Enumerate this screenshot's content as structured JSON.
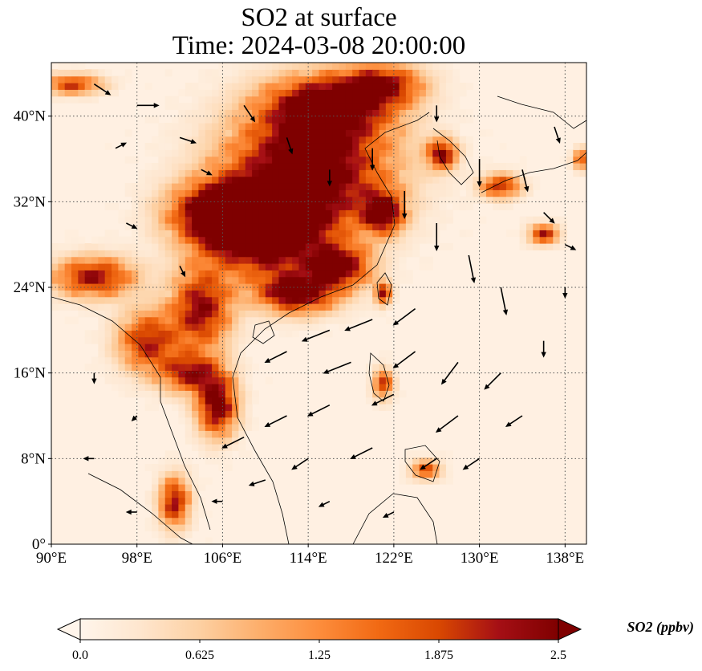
{
  "title": {
    "line1": "SO2 at surface",
    "line2": "Time: 2024-03-08 20:00:00"
  },
  "map": {
    "projection": "PlateCarree",
    "lon_range": [
      90,
      140
    ],
    "lat_range": [
      0,
      45
    ],
    "gridlines": "dotted",
    "lon_ticks": [
      {
        "value": 90,
        "label": "90°E"
      },
      {
        "value": 98,
        "label": "98°E"
      },
      {
        "value": 106,
        "label": "106°E"
      },
      {
        "value": 114,
        "label": "114°E"
      },
      {
        "value": 122,
        "label": "122°E"
      },
      {
        "value": 130,
        "label": "130°E"
      },
      {
        "value": 138,
        "label": "138°E"
      }
    ],
    "lat_ticks": [
      {
        "value": 0,
        "label": "0°"
      },
      {
        "value": 8,
        "label": "8°N"
      },
      {
        "value": 16,
        "label": "16°N"
      },
      {
        "value": 24,
        "label": "24°N"
      },
      {
        "value": 32,
        "label": "32°N"
      },
      {
        "value": 40,
        "label": "40°N"
      }
    ],
    "field": {
      "variable": "SO2",
      "units": "ppbv",
      "background_value": 0.1,
      "hotspots": [
        {
          "lon": 114,
          "lat": 35,
          "rlon": 8,
          "rlat": 6,
          "value": 3.0
        },
        {
          "lon": 110,
          "lat": 29,
          "rlon": 6,
          "rlat": 4,
          "value": 3.0
        },
        {
          "lon": 106,
          "lat": 31,
          "rlon": 5,
          "rlat": 3,
          "value": 2.8
        },
        {
          "lon": 116,
          "lat": 41,
          "rlon": 6,
          "rlat": 3,
          "value": 2.6
        },
        {
          "lon": 121,
          "lat": 31,
          "rlon": 2,
          "rlat": 2,
          "value": 2.5
        },
        {
          "lon": 117,
          "lat": 26,
          "rlon": 3,
          "rlat": 2,
          "value": 2.4
        },
        {
          "lon": 113,
          "lat": 23.5,
          "rlon": 4,
          "rlat": 2,
          "value": 2.6
        },
        {
          "lon": 104,
          "lat": 22,
          "rlon": 3,
          "rlat": 4,
          "value": 2.3
        },
        {
          "lon": 99,
          "lat": 19,
          "rlon": 3,
          "rlat": 3,
          "value": 2.0
        },
        {
          "lon": 94,
          "lat": 25,
          "rlon": 4,
          "rlat": 2,
          "value": 2.2
        },
        {
          "lon": 105.5,
          "lat": 13,
          "rlon": 2,
          "rlat": 3,
          "value": 2.6
        },
        {
          "lon": 103,
          "lat": 16,
          "rlon": 3,
          "rlat": 2,
          "value": 2.0
        },
        {
          "lon": 101.5,
          "lat": 4,
          "rlon": 1.5,
          "rlat": 2.5,
          "value": 2.2
        },
        {
          "lon": 126.5,
          "lat": 36.5,
          "rlon": 1.5,
          "rlat": 1.5,
          "value": 2.3
        },
        {
          "lon": 132,
          "lat": 33.5,
          "rlon": 2,
          "rlat": 1.2,
          "value": 2.0
        },
        {
          "lon": 136,
          "lat": 29,
          "rlon": 1.5,
          "rlat": 1,
          "value": 2.0
        },
        {
          "lon": 121,
          "lat": 23.5,
          "rlon": 0.8,
          "rlat": 1.2,
          "value": 2.0
        },
        {
          "lon": 121,
          "lat": 15,
          "rlon": 1,
          "rlat": 1.5,
          "value": 1.8
        },
        {
          "lon": 125,
          "lat": 7,
          "rlon": 1.5,
          "rlat": 1,
          "value": 1.6
        },
        {
          "lon": 92,
          "lat": 43,
          "rlon": 3,
          "rlat": 1,
          "value": 1.8
        },
        {
          "lon": 121,
          "lat": 43,
          "rlon": 4,
          "rlat": 2,
          "value": 2.0
        },
        {
          "lon": 139.5,
          "lat": 36,
          "rlon": 0.8,
          "rlat": 1,
          "value": 1.8
        }
      ]
    },
    "wind_vectors": [
      {
        "lon": 94,
        "lat": 43,
        "u": 3,
        "v": -2
      },
      {
        "lon": 98,
        "lat": 41,
        "u": 4,
        "v": 0
      },
      {
        "lon": 102,
        "lat": 38,
        "u": 3,
        "v": -1
      },
      {
        "lon": 96,
        "lat": 37,
        "u": 2,
        "v": 1
      },
      {
        "lon": 108,
        "lat": 41,
        "u": 2,
        "v": -3
      },
      {
        "lon": 112,
        "lat": 38,
        "u": 1,
        "v": -3
      },
      {
        "lon": 116,
        "lat": 35,
        "u": 0,
        "v": -3
      },
      {
        "lon": 120,
        "lat": 37,
        "u": 0,
        "v": -4
      },
      {
        "lon": 123,
        "lat": 33,
        "u": 0,
        "v": -5
      },
      {
        "lon": 126,
        "lat": 30,
        "u": 0,
        "v": -5
      },
      {
        "lon": 129,
        "lat": 27,
        "u": 1,
        "v": -5
      },
      {
        "lon": 132,
        "lat": 24,
        "u": 1,
        "v": -5
      },
      {
        "lon": 134,
        "lat": 35,
        "u": 1,
        "v": -4
      },
      {
        "lon": 137,
        "lat": 39,
        "u": 1,
        "v": -3
      },
      {
        "lon": 136,
        "lat": 31,
        "u": 2,
        "v": -2
      },
      {
        "lon": 138,
        "lat": 28,
        "u": 2,
        "v": -1
      },
      {
        "lon": 124,
        "lat": 22,
        "u": -4,
        "v": -3
      },
      {
        "lon": 120,
        "lat": 21,
        "u": -5,
        "v": -2
      },
      {
        "lon": 116,
        "lat": 20,
        "u": -5,
        "v": -2
      },
      {
        "lon": 112,
        "lat": 18,
        "u": -4,
        "v": -2
      },
      {
        "lon": 118,
        "lat": 17,
        "u": -5,
        "v": -2
      },
      {
        "lon": 124,
        "lat": 18,
        "u": -4,
        "v": -3
      },
      {
        "lon": 128,
        "lat": 17,
        "u": -3,
        "v": -4
      },
      {
        "lon": 132,
        "lat": 16,
        "u": -3,
        "v": -3
      },
      {
        "lon": 134,
        "lat": 12,
        "u": -3,
        "v": -2
      },
      {
        "lon": 128,
        "lat": 12,
        "u": -4,
        "v": -3
      },
      {
        "lon": 122,
        "lat": 14,
        "u": -4,
        "v": -2
      },
      {
        "lon": 116,
        "lat": 13,
        "u": -4,
        "v": -2
      },
      {
        "lon": 112,
        "lat": 12,
        "u": -4,
        "v": -2
      },
      {
        "lon": 108,
        "lat": 10,
        "u": -4,
        "v": -2
      },
      {
        "lon": 114,
        "lat": 8,
        "u": -3,
        "v": -2
      },
      {
        "lon": 120,
        "lat": 9,
        "u": -4,
        "v": -2
      },
      {
        "lon": 126,
        "lat": 8,
        "u": -3,
        "v": -2
      },
      {
        "lon": 130,
        "lat": 8,
        "u": -3,
        "v": -2
      },
      {
        "lon": 110,
        "lat": 6,
        "u": -3,
        "v": -1
      },
      {
        "lon": 116,
        "lat": 4,
        "u": -2,
        "v": -1
      },
      {
        "lon": 106,
        "lat": 4,
        "u": -2,
        "v": 0
      },
      {
        "lon": 98,
        "lat": 3,
        "u": -2,
        "v": 0
      },
      {
        "lon": 94,
        "lat": 8,
        "u": -2,
        "v": 0
      },
      {
        "lon": 94,
        "lat": 16,
        "u": 0,
        "v": -2
      },
      {
        "lon": 98,
        "lat": 12,
        "u": -1,
        "v": -1
      },
      {
        "lon": 102,
        "lat": 26,
        "u": 1,
        "v": -2
      },
      {
        "lon": 97,
        "lat": 30,
        "u": 2,
        "v": -1
      },
      {
        "lon": 138,
        "lat": 24,
        "u": 0,
        "v": -2
      },
      {
        "lon": 136,
        "lat": 19,
        "u": 0,
        "v": -3
      },
      {
        "lon": 122,
        "lat": 3,
        "u": -2,
        "v": -1
      },
      {
        "lon": 104,
        "lat": 35,
        "u": 2,
        "v": -1
      },
      {
        "lon": 130,
        "lat": 36,
        "u": 0,
        "v": -5
      },
      {
        "lon": 126,
        "lat": 41,
        "u": 0,
        "v": -3
      }
    ]
  },
  "colorbar": {
    "ticks": [
      "0.0",
      "0.625",
      "1.25",
      "1.875",
      "2.5"
    ],
    "vmin": 0.0,
    "vmax": 2.5,
    "extend": "both",
    "title": "SO2 (ppbv)",
    "colormap": [
      "#fff5eb",
      "#fee6ce",
      "#fdd0a2",
      "#fdae6b",
      "#fd8d3c",
      "#f16913",
      "#d94801",
      "#a50f15",
      "#7f0000"
    ]
  }
}
